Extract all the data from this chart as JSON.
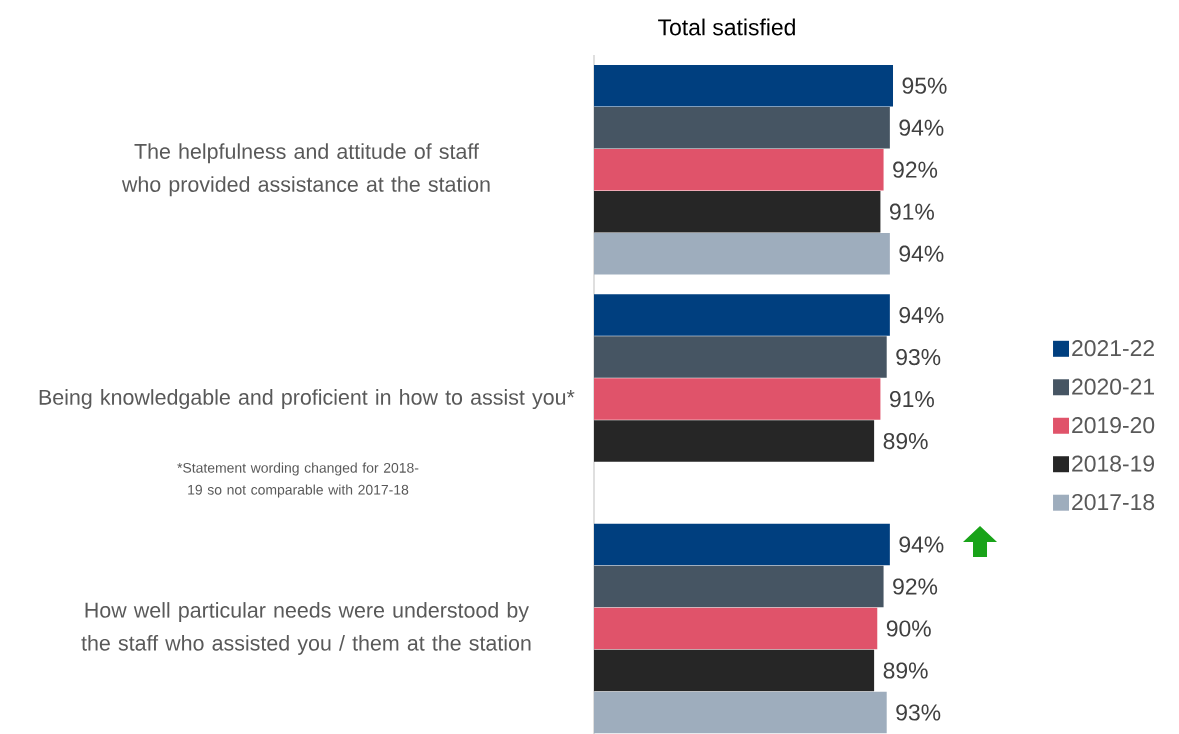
{
  "chart_data": {
    "type": "bar",
    "orientation": "horizontal",
    "title": "Total satisfied",
    "categories": [
      "The helpfulness and attitude of staff who provided assistance at the station",
      "Being knowledgable and proficient in how to assist you*",
      "How well particular needs were understood by the staff who assisted you / them at the station"
    ],
    "series": [
      {
        "name": "2021-22",
        "color": "#003f7f",
        "values": [
          95,
          94,
          94
        ],
        "value_labels": [
          "95%",
          "94%",
          "94%"
        ]
      },
      {
        "name": "2020-21",
        "color": "#465563",
        "values": [
          94,
          93,
          92
        ],
        "value_labels": [
          "94%",
          "93%",
          "92%"
        ]
      },
      {
        "name": "2019-20",
        "color": "#e0536a",
        "values": [
          92,
          91,
          90
        ],
        "value_labels": [
          "92%",
          "91%",
          "90%"
        ]
      },
      {
        "name": "2018-19",
        "color": "#262626",
        "values": [
          91,
          89,
          89
        ],
        "value_labels": [
          "91%",
          "89%",
          "89%"
        ]
      },
      {
        "name": "2017-18",
        "color": "#9eadbd",
        "values": [
          94,
          null,
          93
        ],
        "value_labels": [
          "94%",
          null,
          "93%"
        ]
      }
    ],
    "legend": "right",
    "annotations": [
      "*Statement wording changed for 2018-19 so not comparable with 2017-18"
    ]
  }
}
